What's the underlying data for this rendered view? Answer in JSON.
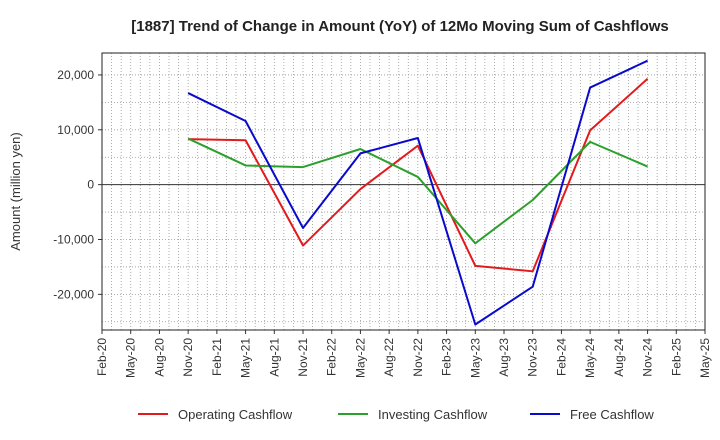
{
  "chart_data": {
    "type": "line",
    "title": "[1887]  Trend of Change in Amount (YoY) of 12Mo Moving Sum of Cashflows",
    "xlabel": "",
    "ylabel": "Amount (million yen)",
    "ylim": [
      -26500,
      24000
    ],
    "yticks": [
      20000,
      10000,
      0,
      -10000,
      -20000
    ],
    "ytick_labels": [
      "20,000",
      "10,000",
      "0",
      "-10,000",
      "-20,000"
    ],
    "categories": [
      "Feb-20",
      "May-20",
      "Aug-20",
      "Nov-20",
      "Feb-21",
      "May-21",
      "Aug-21",
      "Nov-21",
      "Feb-22",
      "May-22",
      "Aug-22",
      "Nov-22",
      "Feb-23",
      "May-23",
      "Aug-23",
      "Nov-23",
      "Feb-24",
      "May-24",
      "Aug-24",
      "Nov-24",
      "Feb-25",
      "May-25"
    ],
    "grid": true,
    "legend_position": "bottom",
    "series": [
      {
        "name": "Operating Cashflow",
        "color": "#e31a1c",
        "values": [
          null,
          null,
          null,
          8300,
          null,
          8100,
          null,
          -11100,
          null,
          -800,
          null,
          7100,
          null,
          -14800,
          null,
          -15800,
          null,
          9900,
          null,
          19300,
          null,
          null
        ]
      },
      {
        "name": "Investing Cashflow",
        "color": "#2ca02c",
        "values": [
          null,
          null,
          null,
          8400,
          null,
          3500,
          null,
          3200,
          null,
          6500,
          null,
          1400,
          null,
          -10700,
          null,
          -2800,
          null,
          7800,
          null,
          3300,
          null,
          null
        ]
      },
      {
        "name": "Free Cashflow",
        "color": "#0a0acd",
        "values": [
          null,
          null,
          null,
          16700,
          null,
          11600,
          null,
          -7900,
          null,
          5700,
          null,
          8500,
          null,
          -25500,
          null,
          -18600,
          null,
          17700,
          null,
          22600,
          null,
          null
        ]
      }
    ]
  }
}
